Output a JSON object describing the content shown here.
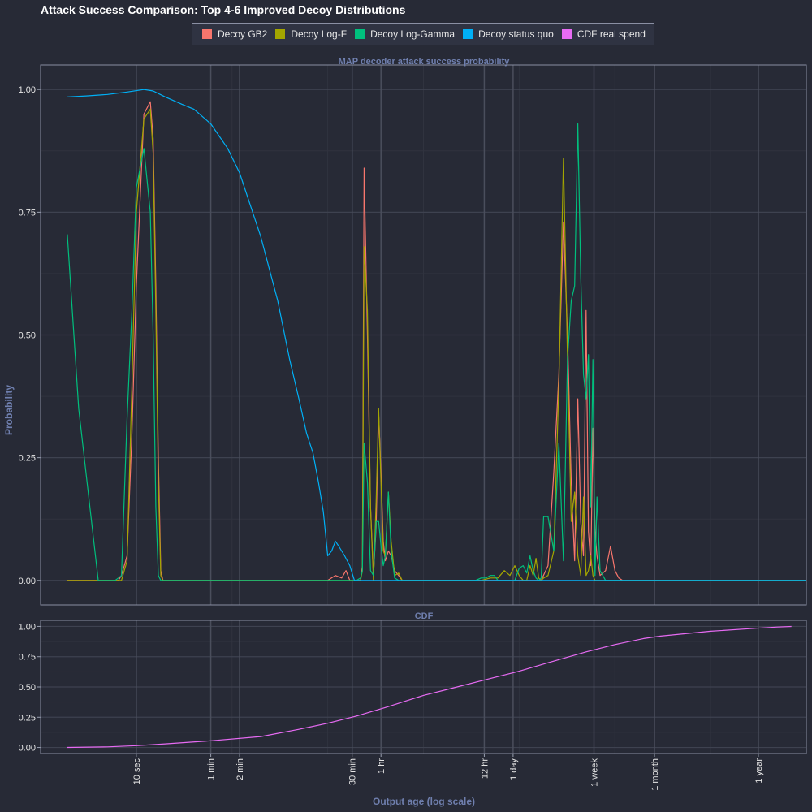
{
  "title": "Attack Success Comparison: Top 4-6 Improved Decoy Distributions",
  "colors": {
    "background": "#272a36",
    "panel_border": "#8a8fa3",
    "grid_major": "#3e4250",
    "grid_minor": "#30333f",
    "vline": "#4a4e5c",
    "strip_text": "#6f7fae"
  },
  "chart_data": [
    {
      "type": "line",
      "strip": "MAP decoder attack success probability",
      "ylabel": "Probability",
      "xlabel": "",
      "x_scale": "log",
      "x_unit": "seconds",
      "xlim": [
        1,
        100000000
      ],
      "ylim": [
        -0.05,
        1.05
      ],
      "yticks": [
        0,
        0.25,
        0.5,
        0.75,
        1
      ],
      "ytick_labels": [
        "0.00",
        "0.25",
        "0.50",
        "0.75",
        "1.00"
      ],
      "legend_position": "top",
      "series": [
        {
          "name": "Decoy GB2",
          "color": "#f8766d",
          "x": [
            1.9,
            4.0,
            6.5,
            7.0,
            8.0,
            9.0,
            10.0,
            12.0,
            14.0,
            15.0,
            16.0,
            17.0,
            18.0,
            19.0,
            20.0,
            22.0,
            24.0,
            1000,
            1200,
            1400,
            1550,
            1700,
            2000,
            2200,
            2300,
            2400,
            2600,
            2800,
            3000,
            3200,
            3400,
            3600,
            3800,
            4000,
            4300,
            4600,
            5000,
            5500,
            6000,
            6500,
            7000,
            7500,
            8000,
            9000,
            10000,
            11000,
            15000,
            20000,
            30000,
            40000,
            50000,
            60000,
            70000,
            80000,
            100000,
            120000,
            140000,
            170000,
            200000,
            230000,
            260000,
            290000,
            320000,
            350000,
            380000,
            410000,
            440000,
            470000,
            500000,
            530000,
            560000,
            590000,
            620000,
            650000,
            700000,
            800000,
            900000,
            1000000,
            1100000,
            1200000,
            1400000,
            1600000,
            1800000,
            2000000,
            100000000
          ],
          "y": [
            0,
            0,
            0,
            0.01,
            0.05,
            0.3,
            0.6,
            0.95,
            0.975,
            0.9,
            0.6,
            0.25,
            0.02,
            0,
            0,
            0,
            0,
            0,
            0.01,
            0.005,
            0.02,
            0,
            0,
            0,
            0.03,
            0.84,
            0.5,
            0.15,
            0.01,
            0.11,
            0.34,
            0.22,
            0.08,
            0.04,
            0.06,
            0.05,
            0.02,
            0.01,
            0,
            0,
            0,
            0,
            0,
            0,
            0,
            0,
            0,
            0,
            0,
            0,
            0,
            0,
            0,
            0,
            0,
            0,
            0,
            0,
            0.03,
            0.22,
            0.42,
            0.73,
            0.5,
            0.2,
            0.04,
            0.37,
            0.12,
            0.05,
            0.55,
            0.1,
            0.03,
            0.31,
            0.1,
            0.05,
            0.01,
            0.02,
            0.07,
            0.02,
            0.005,
            0,
            0,
            0,
            0,
            0,
            0
          ]
        },
        {
          "name": "Decoy Log-F",
          "color": "#a3a500",
          "x": [
            1.9,
            4.0,
            7.0,
            8.0,
            9.0,
            10.0,
            12.0,
            14.0,
            15.0,
            16.0,
            17.0,
            18.0,
            19.0,
            20.0,
            1000,
            1400,
            1700,
            2000,
            2200,
            2300,
            2400,
            2600,
            2800,
            3000,
            3200,
            3400,
            3600,
            3800,
            4000,
            4300,
            4600,
            5000,
            5500,
            6000,
            6500,
            7000,
            8000,
            10000,
            15000,
            20000,
            30000,
            40000,
            50000,
            60000,
            70000,
            80000,
            90000,
            100000,
            110000,
            120000,
            130000,
            140000,
            150000,
            160000,
            170000,
            180000,
            200000,
            230000,
            260000,
            290000,
            320000,
            350000,
            380000,
            410000,
            440000,
            470000,
            500000,
            530000,
            560000,
            590000,
            620000,
            700000,
            800000,
            900000,
            100000000
          ],
          "y": [
            0,
            0,
            0,
            0.04,
            0.4,
            0.75,
            0.94,
            0.96,
            0.87,
            0.55,
            0.2,
            0.01,
            0,
            0,
            0,
            0,
            0,
            0,
            0,
            0.02,
            0.68,
            0.55,
            0.15,
            0,
            0.16,
            0.35,
            0.2,
            0.06,
            0.05,
            0.18,
            0.08,
            0.01,
            0.015,
            0,
            0,
            0,
            0,
            0,
            0,
            0,
            0,
            0,
            0.005,
            0.005,
            0.02,
            0.01,
            0.03,
            0.01,
            0,
            0,
            0.03,
            0.01,
            0.045,
            0.005,
            0,
            0.005,
            0.01,
            0.06,
            0.4,
            0.86,
            0.45,
            0.12,
            0.18,
            0.05,
            0.01,
            0.17,
            0.01,
            0.02,
            0.05,
            0.01,
            0,
            0,
            0,
            0,
            0
          ]
        },
        {
          "name": "Decoy Log-Gamma",
          "color": "#00bf7d",
          "x": [
            1.9,
            2.5,
            4.0,
            6.0,
            6.5,
            7.0,
            8.0,
            9.0,
            10.0,
            12.0,
            14.0,
            15.0,
            16.0,
            17.0,
            18.0,
            19.0,
            20.0,
            1000,
            1500,
            2000,
            2200,
            2300,
            2400,
            2600,
            2800,
            3000,
            3200,
            3400,
            3600,
            3800,
            4000,
            4300,
            4600,
            5000,
            5500,
            6000,
            6500,
            7000,
            10000,
            15000,
            20000,
            25000,
            30000,
            35000,
            40000,
            45000,
            50000,
            55000,
            60000,
            65000,
            70000,
            80000,
            90000,
            100000,
            110000,
            120000,
            130000,
            140000,
            150000,
            160000,
            170000,
            180000,
            200000,
            230000,
            260000,
            290000,
            320000,
            350000,
            380000,
            410000,
            440000,
            470000,
            500000,
            530000,
            560000,
            590000,
            620000,
            650000,
            700000,
            800000,
            900000,
            100000000
          ],
          "y": [
            0.705,
            0.35,
            0,
            0,
            0.005,
            0.01,
            0.33,
            0.55,
            0.8,
            0.88,
            0.75,
            0.5,
            0.15,
            0.01,
            0,
            0,
            0,
            0,
            0,
            0,
            0.005,
            0.02,
            0.28,
            0.2,
            0.02,
            0.01,
            0.12,
            0.12,
            0.07,
            0.03,
            0.05,
            0.18,
            0.06,
            0.005,
            0,
            0,
            0,
            0,
            0,
            0,
            0,
            0,
            0,
            0,
            0.005,
            0.005,
            0.01,
            0.01,
            0,
            0,
            0,
            0,
            0,
            0.025,
            0.03,
            0.015,
            0.05,
            0.02,
            0.005,
            0,
            0.005,
            0.13,
            0.13,
            0.06,
            0.28,
            0.04,
            0.45,
            0.57,
            0.6,
            0.93,
            0.62,
            0.42,
            0.37,
            0.46,
            0.15,
            0.45,
            0.01,
            0.17,
            0.02,
            0,
            0,
            0
          ]
        },
        {
          "name": "Decoy status quo",
          "color": "#00b0f6",
          "x": [
            1.9,
            3,
            5,
            8,
            12,
            15,
            20,
            30,
            40,
            60,
            90,
            120,
            200,
            300,
            400,
            500,
            600,
            700,
            800,
            900,
            1000,
            1100,
            1200,
            1300,
            1500,
            1700,
            1900,
            2000,
            2100,
            2300,
            2500,
            2800,
            3000,
            3200,
            3500,
            4000,
            5000,
            6000,
            8000,
            10000,
            12000,
            15000,
            17000,
            20000,
            25000,
            30000,
            35000,
            40000,
            50000,
            100000,
            300000,
            400000,
            500000,
            600000,
            700000,
            800000,
            1000000,
            10000000,
            30000000,
            35000000,
            40000000,
            100000000
          ],
          "y": [
            0.985,
            0.987,
            0.99,
            0.995,
            1.0,
            0.997,
            0.985,
            0.97,
            0.96,
            0.93,
            0.88,
            0.83,
            0.7,
            0.57,
            0.45,
            0.37,
            0.3,
            0.26,
            0.2,
            0.14,
            0.05,
            0.06,
            0.08,
            0.07,
            0.05,
            0.03,
            0.0,
            0.0,
            0.0,
            0.0,
            0.0,
            0.0,
            0.0,
            0.0,
            0.0,
            0.0,
            0.0,
            0.0,
            0.0,
            0.0,
            0.0,
            0.0,
            0.0,
            0.0,
            0.0,
            0.0,
            0.0,
            0.0,
            0.0,
            0.0,
            0.0,
            0.0,
            0.0,
            0.0,
            0.0,
            0.0,
            0.0,
            0.0,
            0.0,
            0.0,
            0.0,
            0.0
          ]
        }
      ]
    },
    {
      "type": "line",
      "strip": "CDF",
      "ylabel": "",
      "xlabel": "Output age (log scale)",
      "x_scale": "log",
      "x_unit": "seconds",
      "xlim": [
        1,
        100000000
      ],
      "ylim": [
        -0.05,
        1.05
      ],
      "yticks": [
        0,
        0.25,
        0.5,
        0.75,
        1
      ],
      "ytick_labels": [
        "0.00",
        "0.25",
        "0.50",
        "0.75",
        "1.00"
      ],
      "xticks": [
        10,
        60,
        120,
        1800,
        3600,
        43200,
        86400,
        604800,
        2592000,
        31536000
      ],
      "xtick_labels": [
        "10 sec",
        "1 min",
        "2 min",
        "30 min",
        "1 hr",
        "12 hr",
        "1 day",
        "1 week",
        "1 month",
        "1 year"
      ],
      "series": [
        {
          "name": "CDF real spend",
          "color": "#e76bf3",
          "x": [
            1.9,
            5,
            10,
            20,
            60,
            200,
            500,
            1000,
            2000,
            4000,
            10000,
            20000,
            50000,
            100000,
            200000,
            500000,
            1000000,
            2000000,
            3000000,
            10000000,
            30000000,
            50000000,
            70000000
          ],
          "y": [
            0.0,
            0.005,
            0.015,
            0.03,
            0.055,
            0.09,
            0.15,
            0.2,
            0.26,
            0.33,
            0.43,
            0.49,
            0.57,
            0.63,
            0.7,
            0.79,
            0.85,
            0.9,
            0.92,
            0.96,
            0.985,
            0.995,
            1.0
          ]
        }
      ]
    }
  ]
}
